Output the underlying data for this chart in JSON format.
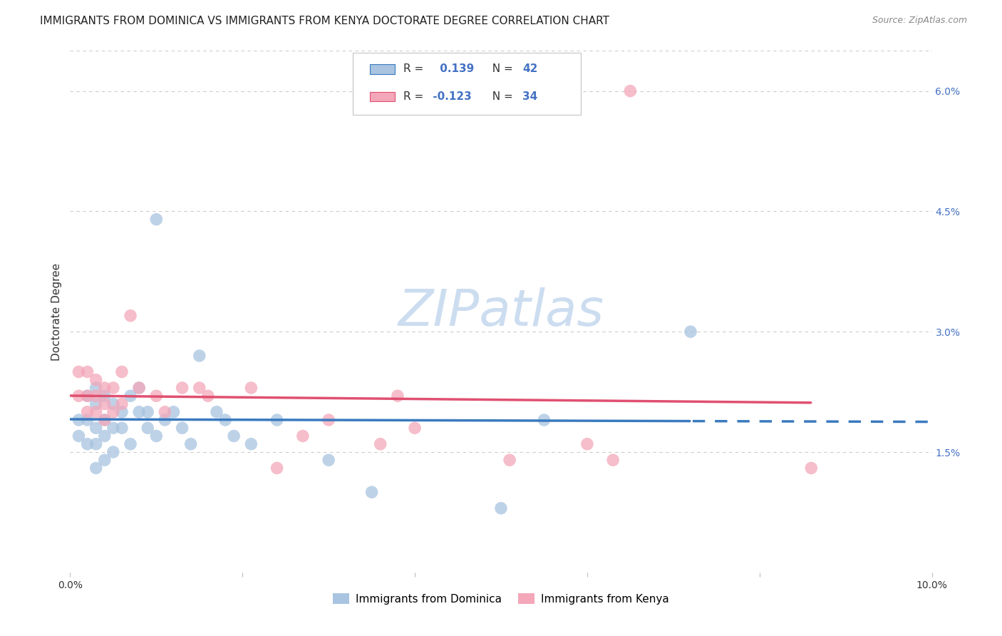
{
  "title": "IMMIGRANTS FROM DOMINICA VS IMMIGRANTS FROM KENYA DOCTORATE DEGREE CORRELATION CHART",
  "source": "Source: ZipAtlas.com",
  "xlabel_label": "Immigrants from Dominica",
  "ylabel_label": "Doctorate Degree",
  "x_axis_label2": "Immigrants from Kenya",
  "xlim": [
    0.0,
    0.1
  ],
  "ylim": [
    0.0,
    0.065
  ],
  "x_ticks": [
    0.0,
    0.02,
    0.04,
    0.06,
    0.08,
    0.1
  ],
  "x_tick_labels": [
    "0.0%",
    "",
    "",
    "",
    "",
    "10.0%"
  ],
  "y_ticks_right": [
    0.0,
    0.015,
    0.03,
    0.045,
    0.06
  ],
  "y_tick_labels_right": [
    "",
    "1.5%",
    "3.0%",
    "4.5%",
    "6.0%"
  ],
  "R_dominica": 0.139,
  "N_dominica": 42,
  "R_kenya": -0.123,
  "N_kenya": 34,
  "color_dominica": "#a8c4e0",
  "color_kenya": "#f4a7b9",
  "line_color_dominica": "#3a7abf",
  "line_color_kenya": "#e05070",
  "watermark": "ZIPatlas",
  "dominica_x": [
    0.001,
    0.001,
    0.002,
    0.002,
    0.002,
    0.003,
    0.003,
    0.003,
    0.003,
    0.003,
    0.004,
    0.004,
    0.004,
    0.004,
    0.005,
    0.005,
    0.005,
    0.006,
    0.006,
    0.007,
    0.007,
    0.008,
    0.008,
    0.009,
    0.009,
    0.01,
    0.01,
    0.011,
    0.012,
    0.013,
    0.014,
    0.015,
    0.017,
    0.018,
    0.019,
    0.021,
    0.024,
    0.03,
    0.035,
    0.05,
    0.055,
    0.072
  ],
  "dominica_y": [
    0.019,
    0.017,
    0.022,
    0.019,
    0.016,
    0.023,
    0.021,
    0.018,
    0.016,
    0.013,
    0.022,
    0.019,
    0.017,
    0.014,
    0.021,
    0.018,
    0.015,
    0.02,
    0.018,
    0.022,
    0.016,
    0.023,
    0.02,
    0.02,
    0.018,
    0.044,
    0.017,
    0.019,
    0.02,
    0.018,
    0.016,
    0.027,
    0.02,
    0.019,
    0.017,
    0.016,
    0.019,
    0.014,
    0.01,
    0.008,
    0.019,
    0.03
  ],
  "kenya_x": [
    0.001,
    0.001,
    0.002,
    0.002,
    0.002,
    0.003,
    0.003,
    0.003,
    0.004,
    0.004,
    0.004,
    0.005,
    0.005,
    0.006,
    0.006,
    0.007,
    0.008,
    0.01,
    0.011,
    0.013,
    0.015,
    0.016,
    0.021,
    0.024,
    0.027,
    0.03,
    0.036,
    0.038,
    0.04,
    0.051,
    0.06,
    0.063,
    0.065,
    0.086
  ],
  "kenya_y": [
    0.025,
    0.022,
    0.025,
    0.022,
    0.02,
    0.024,
    0.022,
    0.02,
    0.023,
    0.021,
    0.019,
    0.023,
    0.02,
    0.025,
    0.021,
    0.032,
    0.023,
    0.022,
    0.02,
    0.023,
    0.023,
    0.022,
    0.023,
    0.013,
    0.017,
    0.019,
    0.016,
    0.022,
    0.018,
    0.014,
    0.016,
    0.014,
    0.06,
    0.013
  ],
  "grid_color": "#cccccc",
  "background_color": "#ffffff",
  "title_fontsize": 11,
  "axis_label_fontsize": 11,
  "tick_fontsize": 10,
  "legend_fontsize": 11,
  "watermark_fontsize": 52
}
